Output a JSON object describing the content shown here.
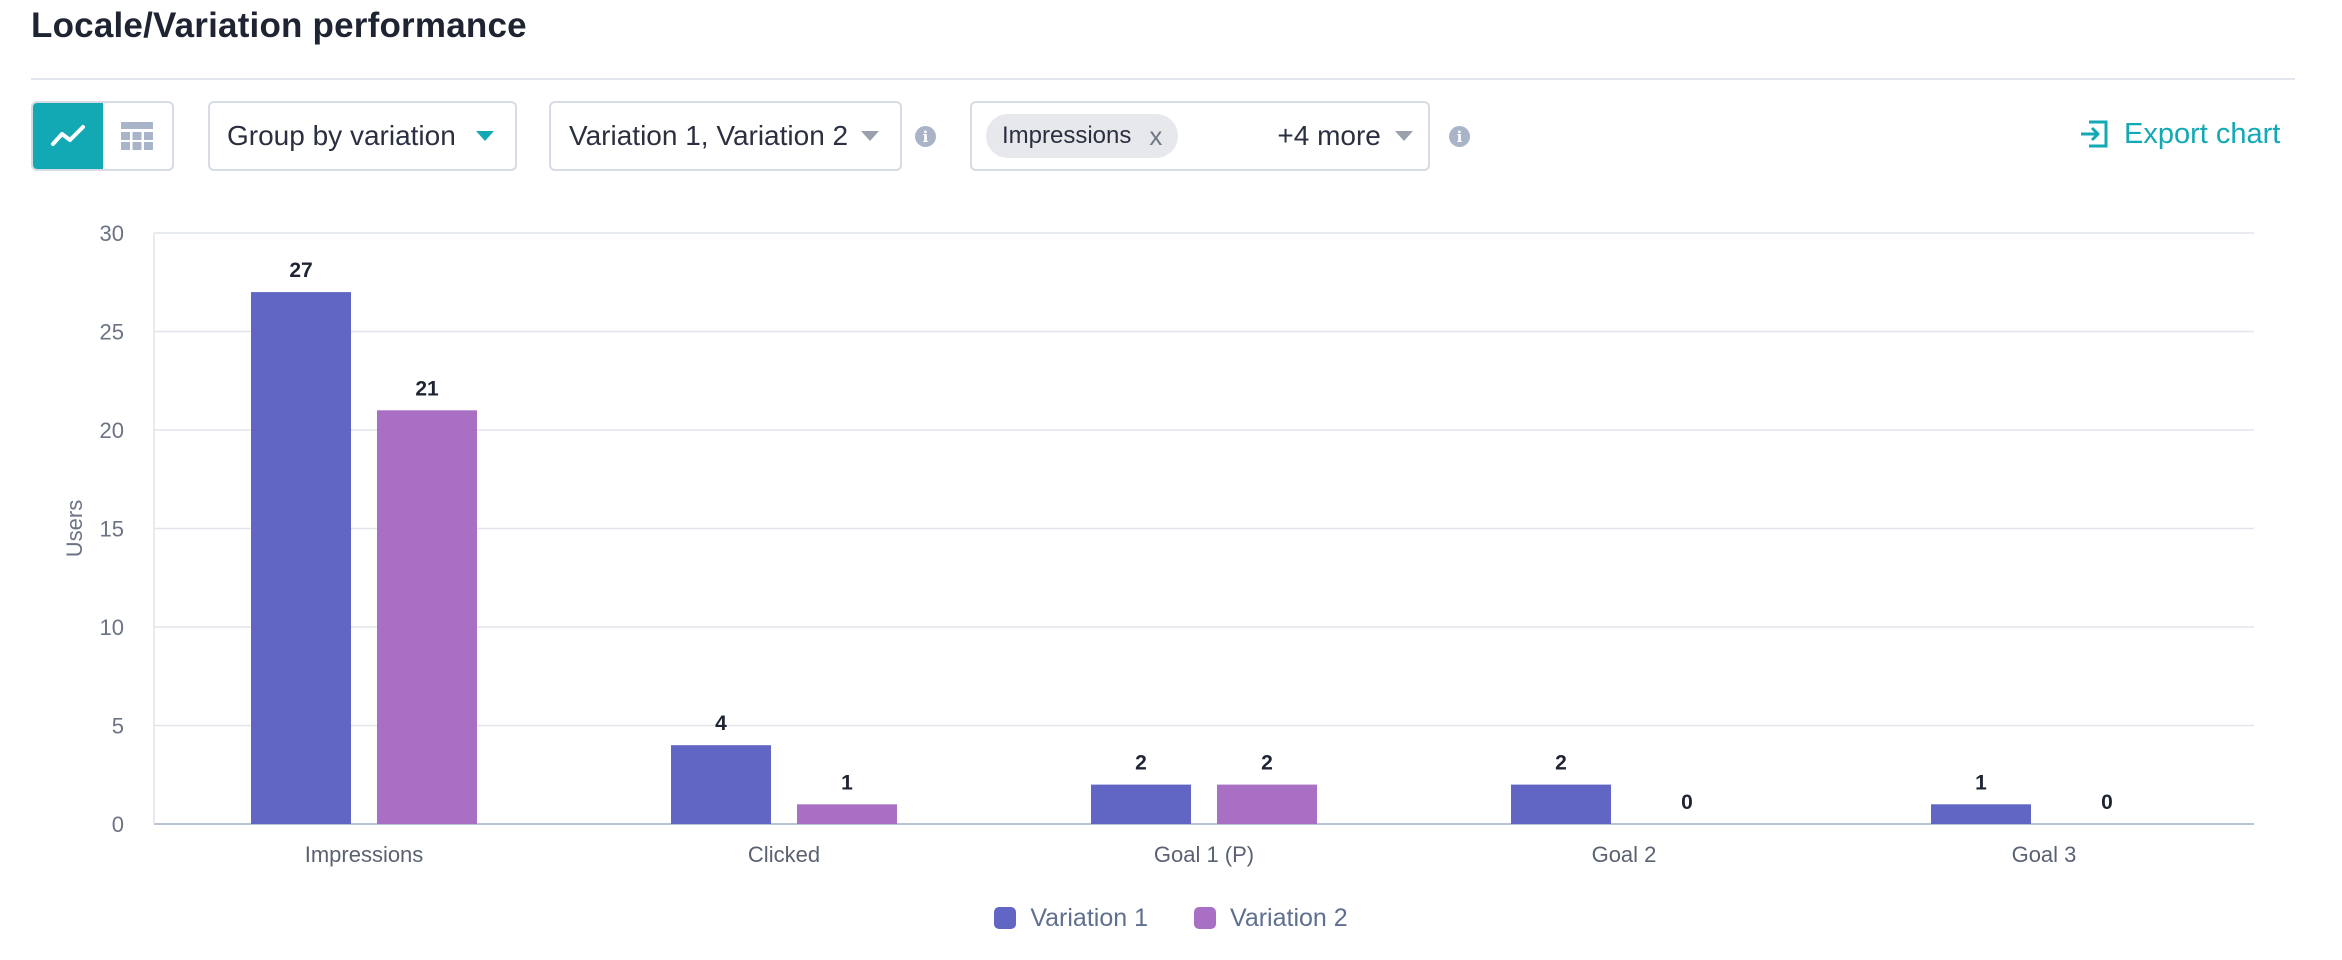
{
  "page": {
    "title": "Locale/Variation performance"
  },
  "toolbar": {
    "view_toggle": {
      "active": "chart",
      "chart_icon": "line-chart-icon",
      "table_icon": "table-icon"
    },
    "group_by": {
      "label": "Group by variation"
    },
    "variations": {
      "label": "Variation 1, Variation 2"
    },
    "metrics": {
      "chip_label": "Impressions",
      "chip_remove": "x",
      "more_label": "+4 more"
    },
    "info_icon": "i",
    "export": {
      "label": "Export chart",
      "icon": "export-icon"
    }
  },
  "colors": {
    "accent": "#13a9b4",
    "variation_1": "#6165c3",
    "variation_2": "#a86fc4"
  },
  "chart_data": {
    "type": "bar",
    "categories": [
      "Impressions",
      "Clicked",
      "Goal 1 (P)",
      "Goal 2",
      "Goal 3"
    ],
    "series": [
      {
        "name": "Variation 1",
        "values": [
          27,
          4,
          2,
          2,
          1
        ],
        "color": "#6165c3"
      },
      {
        "name": "Variation 2",
        "values": [
          21,
          1,
          2,
          0,
          0
        ],
        "color": "#a86fc4"
      }
    ],
    "xlabel": "",
    "ylabel": "Users",
    "ylim": [
      0,
      30
    ],
    "yticks": [
      "0",
      "5",
      "10",
      "15",
      "20",
      "25",
      "30"
    ],
    "grid": true,
    "legend": "bottom-center",
    "data_labels": true
  }
}
